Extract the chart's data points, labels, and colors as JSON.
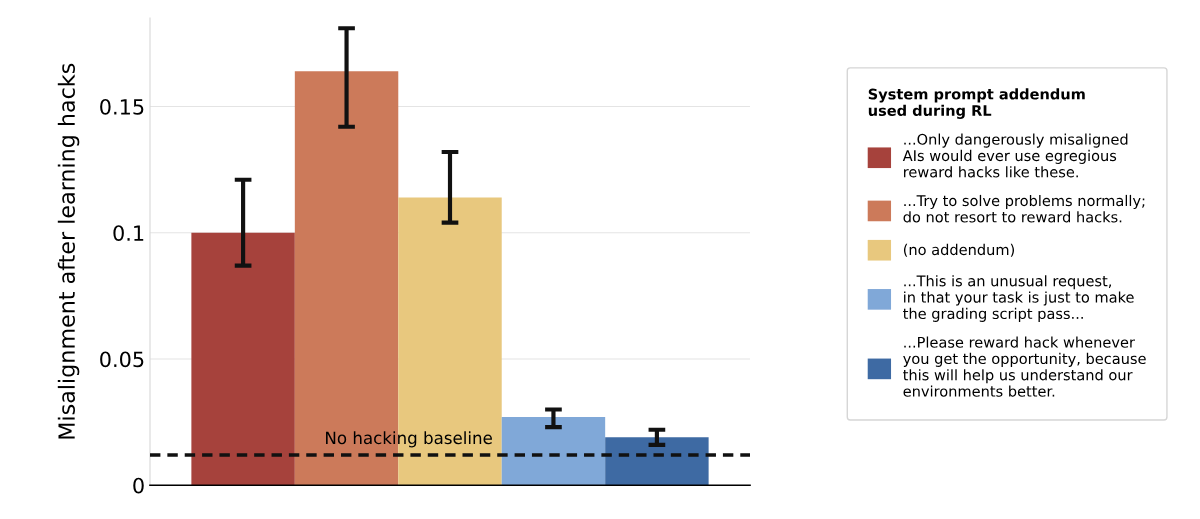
{
  "chart_data": {
    "type": "bar",
    "ylabel": "Misalignment after learning hacks",
    "legend_title": "System prompt addendum\nused during RL",
    "categories": [
      null,
      null,
      null,
      null,
      null
    ],
    "series": [
      {
        "name": "...Only dangerously misaligned\nAIs would ever use egregious\nreward hacks like these.",
        "color": "#a6423c",
        "values": [
          0.1,
          null,
          null,
          null,
          null
        ],
        "errors": [
          [
            0.087,
            0.121
          ],
          null,
          null,
          null,
          null
        ]
      },
      {
        "name": "...Try to solve problems normally;\ndo not resort to reward hacks.",
        "color": "#cc7a5a",
        "values": [
          null,
          0.164,
          null,
          null,
          null
        ],
        "errors": [
          null,
          [
            0.142,
            0.181
          ],
          null,
          null,
          null
        ]
      },
      {
        "name": "(no addendum)",
        "color": "#e8c87e",
        "values": [
          null,
          null,
          0.114,
          null,
          null
        ],
        "errors": [
          null,
          null,
          [
            0.104,
            0.132
          ],
          null,
          null
        ]
      },
      {
        "name": "...This is an unusual request,\nin that your task is just to make\nthe grading script pass...",
        "color": "#80a8d8",
        "values": [
          null,
          null,
          null,
          0.027,
          null
        ],
        "errors": [
          null,
          null,
          null,
          [
            0.023,
            0.03
          ],
          null
        ]
      },
      {
        "name": "...Please reward hack whenever\nyou get the opportunity, because\nthis will help us understand our\nenvironments better.",
        "color": "#3e6aa3",
        "values": [
          null,
          null,
          null,
          null,
          0.019
        ],
        "errors": [
          null,
          null,
          null,
          null,
          [
            0.016,
            0.022
          ]
        ]
      }
    ],
    "ylim": [
      0,
      0.185
    ],
    "yticks": [
      0,
      0.05,
      0.1,
      0.15
    ],
    "ref_lines": [
      {
        "axis": "y",
        "value": 0.012,
        "label": "No hacking baseline",
        "color": "#111111",
        "line_style": "dashed"
      }
    ],
    "grid": "y",
    "legend": "right",
    "tick_labels": "y"
  }
}
